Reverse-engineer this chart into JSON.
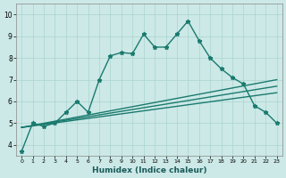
{
  "title": "",
  "xlabel": "Humidex (Indice chaleur)",
  "ylabel": "",
  "xlim": [
    -0.5,
    23.5
  ],
  "ylim": [
    3.5,
    10.5
  ],
  "yticks": [
    4,
    5,
    6,
    7,
    8,
    9,
    10
  ],
  "xticks": [
    0,
    1,
    2,
    3,
    4,
    5,
    6,
    7,
    8,
    9,
    10,
    11,
    12,
    13,
    14,
    15,
    16,
    17,
    18,
    19,
    20,
    21,
    22,
    23
  ],
  "background_color": "#cce9e7",
  "grid_color": "#aad4d0",
  "line_color": "#1a7a6e",
  "line_width": 1.0,
  "marker": "*",
  "marker_size": 3.5,
  "series": [
    {
      "x": [
        0,
        1,
        2,
        3,
        4,
        5,
        6,
        7,
        8,
        9,
        10,
        11,
        12,
        13,
        14,
        15,
        16,
        17,
        18,
        19,
        20,
        21,
        22,
        23
      ],
      "y": [
        3.7,
        5.0,
        4.85,
        5.0,
        5.5,
        6.0,
        5.5,
        7.0,
        8.1,
        8.25,
        8.2,
        9.1,
        8.5,
        8.5,
        9.1,
        9.7,
        8.8,
        8.0,
        7.5,
        7.1,
        6.8,
        5.8,
        5.5,
        5.0
      ],
      "marker": true
    },
    {
      "x": [
        0,
        23
      ],
      "y": [
        4.8,
        7.0
      ],
      "marker": false
    },
    {
      "x": [
        0,
        23
      ],
      "y": [
        4.8,
        6.7
      ],
      "marker": false
    },
    {
      "x": [
        0,
        23
      ],
      "y": [
        4.8,
        6.4
      ],
      "marker": false
    }
  ]
}
